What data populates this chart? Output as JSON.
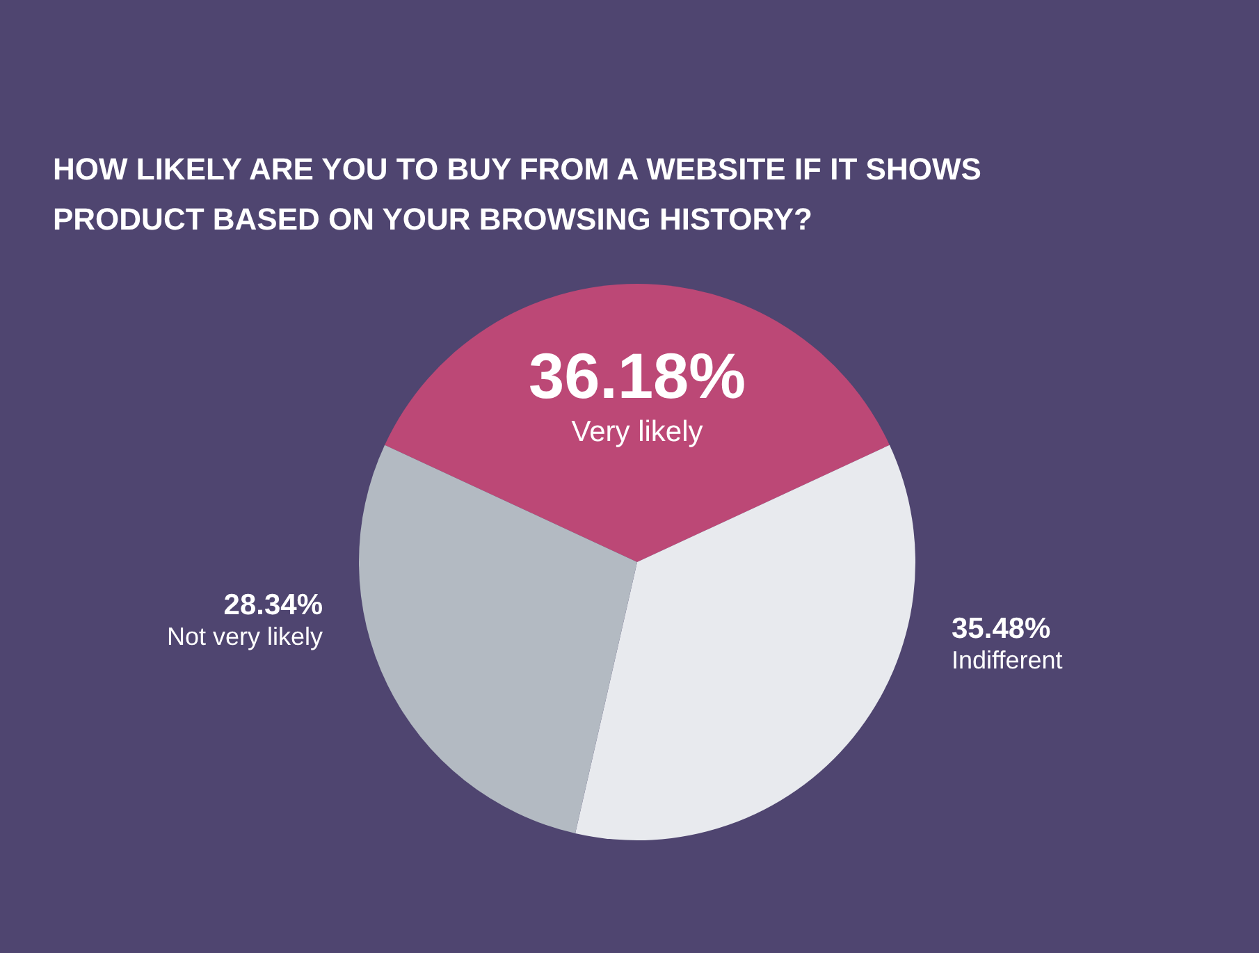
{
  "chart_data": {
    "type": "pie",
    "title": "HOW LIKELY ARE YOU TO BUY FROM A WEBSITE IF IT SHOWS PRODUCT BASED ON YOUR BROWSING HISTORY?",
    "categories": [
      "Very likely",
      "Indifferent",
      "Not very likely"
    ],
    "values": [
      36.18,
      35.48,
      28.34
    ],
    "value_labels": [
      "36.18%",
      "35.48%",
      "28.34%"
    ],
    "colors": [
      "#bc4876",
      "#e8eaee",
      "#b3bac2"
    ],
    "legend": false
  }
}
